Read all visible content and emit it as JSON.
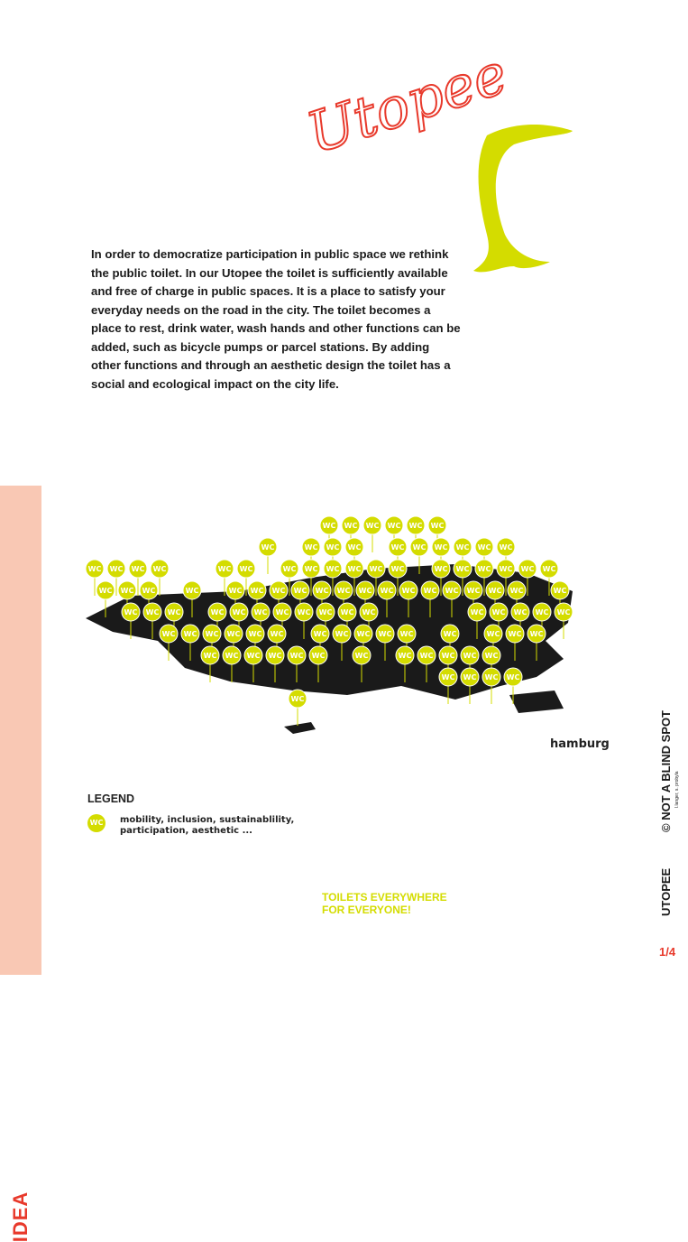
{
  "logo_text": "Utopee",
  "description": "In order to democratize participation in public space we rethink the public toilet. In our Utopee the toilet is sufficiently available and free of charge in public spaces. It is a place to satisfy your everyday needs on the road in the city. The toilet becomes a place to rest, drink water, wash hands and other functions can be added, such as bicycle pumps or parcel stations. By adding other functions and through an aesthetic design the toilet has a social and ecological impact on the city life.",
  "sidebar_label": "IDEA",
  "map": {
    "city_label": "hamburg",
    "pin_label": "WC",
    "pin_color": "#d4dc00"
  },
  "legend": {
    "title": "LEGEND",
    "icon_label": "WC",
    "text": "mobility, inclusion, sustainablility, participation, aesthetic ..."
  },
  "slogan": {
    "line1": "TOILETS EVERYWHERE",
    "line2": "FOR EVERYONE!"
  },
  "footer": {
    "project": "UTOPEE",
    "copyright": "© NOT A BLIND SPOT",
    "authors": "l.langer, s. probyla",
    "page": "1/4"
  },
  "colors": {
    "accent_red": "#e8392b",
    "accent_yellow": "#d4dc00",
    "sidebar": "#f9c8b4"
  }
}
